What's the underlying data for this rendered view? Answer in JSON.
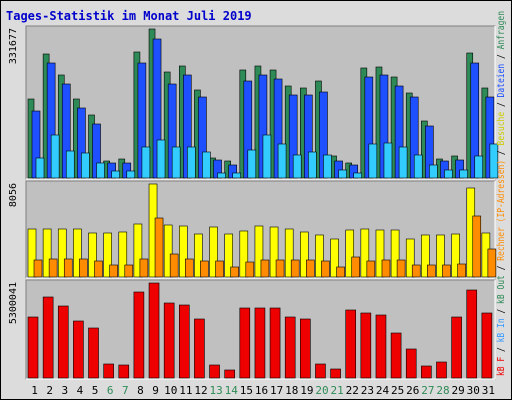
{
  "chart_data": {
    "type": "bar",
    "title": "Tages-Statistik im Monat Juli 2019",
    "categories": [
      "1",
      "2",
      "3",
      "4",
      "5",
      "6",
      "7",
      "8",
      "9",
      "10",
      "11",
      "12",
      "13",
      "14",
      "15",
      "16",
      "17",
      "18",
      "19",
      "20",
      "21",
      "22",
      "23",
      "24",
      "25",
      "26",
      "27",
      "28",
      "29",
      "30",
      "31"
    ],
    "weekend_days": [
      "6",
      "7",
      "13",
      "14",
      "20",
      "21",
      "27",
      "28"
    ],
    "panels": [
      {
        "axis_label": "331677",
        "ymax": 331677,
        "series": [
          {
            "name": "Anfragen",
            "color": "#2e8b57",
            "values": [
              175000,
              275000,
              230000,
              175000,
              140000,
              38000,
              43000,
              280000,
              331677,
              235000,
              250000,
              195000,
              45000,
              38000,
              240000,
              250000,
              240000,
              205000,
              200000,
              215000,
              48000,
              34000,
              245000,
              248000,
              225000,
              190000,
              127000,
              43000,
              48000,
              278000,
              200000
            ]
          },
          {
            "name": "Dateien",
            "color": "#1e50ff",
            "values": [
              150000,
              255000,
              210000,
              155000,
              120000,
              33000,
              33000,
              255000,
              310000,
              210000,
              230000,
              180000,
              40000,
              28000,
              215000,
              230000,
              220000,
              185000,
              185000,
              192000,
              38000,
              28000,
              225000,
              230000,
              205000,
              180000,
              115000,
              38000,
              40000,
              255000,
              180000
            ]
          },
          {
            "name": "Rechner (IP-Adressen)",
            "color": "#33ccff",
            "values": [
              45000,
              95000,
              60000,
              55000,
              33000,
              15000,
              15000,
              70000,
              85000,
              70000,
              70000,
              58000,
              12000,
              12000,
              63000,
              95000,
              75000,
              52000,
              58000,
              52000,
              18000,
              12000,
              75000,
              78000,
              68000,
              52000,
              30000,
              18000,
              18000,
              48000,
              75000
            ]
          }
        ]
      },
      {
        "axis_label": "8056",
        "ymax": 8056,
        "series": [
          {
            "name": "Besuche",
            "color": "#ffff00",
            "values": [
              4200,
              4200,
              4200,
              4200,
              3800,
              3800,
              3900,
              4600,
              8056,
              4500,
              4400,
              3700,
              4300,
              3700,
              4000,
              4400,
              4300,
              4200,
              3900,
              3600,
              3300,
              4100,
              4200,
              4100,
              4100,
              3300,
              3600,
              3600,
              3700,
              7700,
              3800
            ]
          },
          {
            "name": "Rechner",
            "color": "#ff8c00",
            "values": [
              1500,
              1600,
              1600,
              1600,
              1400,
              1000,
              1000,
              1600,
              5100,
              2000,
              1600,
              1400,
              1400,
              900,
              1300,
              1500,
              1500,
              1500,
              1500,
              1400,
              900,
              1700,
              1400,
              1500,
              1500,
              1000,
              1000,
              1000,
              1100,
              5300,
              2400
            ]
          }
        ]
      },
      {
        "axis_label": "5300041",
        "ymax": 5300041,
        "series": [
          {
            "name": "kB F",
            "color": "#ee0000",
            "values": [
              3400000,
              4500000,
              4000000,
              3200000,
              2800000,
              800000,
              700000,
              4800000,
              5300041,
              4200000,
              4100000,
              3300000,
              700000,
              450000,
              3900000,
              3900000,
              3900000,
              3400000,
              3300000,
              800000,
              500000,
              3800000,
              3600000,
              3500000,
              2500000,
              1600000,
              650000,
              900000,
              3400000,
              4900000,
              3600000
            ]
          }
        ]
      }
    ],
    "legend": {
      "position": "right",
      "items": [
        {
          "text": "kB F",
          "color": "#ee0000"
        },
        {
          "text": " / ",
          "color": "#000000"
        },
        {
          "text": "kB In",
          "color": "#3399ff"
        },
        {
          "text": " / ",
          "color": "#000000"
        },
        {
          "text": "kB Out",
          "color": "#2e8b57"
        },
        {
          "text": " / ",
          "color": "#000000"
        },
        {
          "text": "Rechner (IP-Adressen)",
          "color": "#ff8c00"
        },
        {
          "text": " / ",
          "color": "#000000"
        },
        {
          "text": "Besuche",
          "color": "#cccc00"
        },
        {
          "text": " / ",
          "color": "#000000"
        },
        {
          "text": "Dateien",
          "color": "#1e50ff"
        },
        {
          "text": " / ",
          "color": "#000000"
        },
        {
          "text": "Anfragen",
          "color": "#2e8b57"
        }
      ]
    },
    "colors": {
      "title": "#0000cc",
      "weekday_label": "#000000",
      "weekend_label": "#2e8b57",
      "plot_background": "#c0c0c0",
      "outer_background": "#dcdcdc"
    },
    "grid": true
  }
}
